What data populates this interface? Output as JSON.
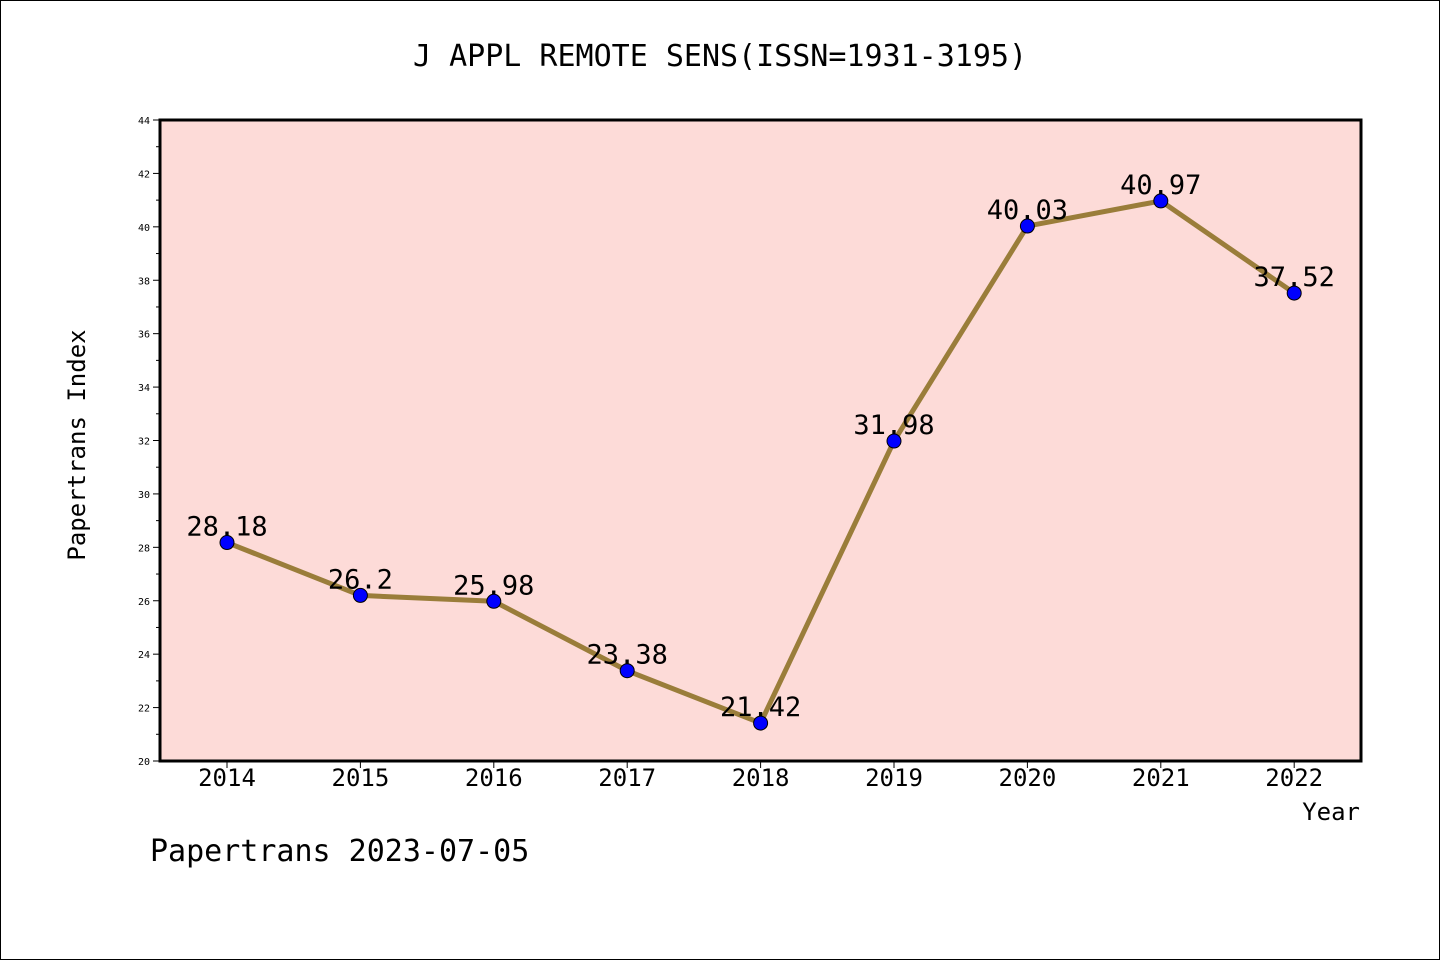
{
  "chart_data": {
    "type": "line",
    "title": "J APPL REMOTE SENS(ISSN=1931-3195)",
    "xlabel": "Year",
    "ylabel": "Papertrans Index",
    "categories": [
      "2014",
      "2015",
      "2016",
      "2017",
      "2018",
      "2019",
      "2020",
      "2021",
      "2022"
    ],
    "values": [
      28.18,
      26.2,
      25.98,
      23.38,
      21.42,
      31.98,
      40.03,
      40.97,
      37.52
    ],
    "data_labels": [
      "28.18",
      "26.2",
      "25.98",
      "23.38",
      "21.42",
      "31.98",
      "40.03",
      "40.97",
      "37.52"
    ],
    "ylim": [
      20,
      44
    ],
    "yticks": [
      20,
      22,
      24,
      26,
      28,
      30,
      32,
      34,
      36,
      38,
      40,
      42,
      44
    ],
    "grid": false,
    "legend": "none",
    "colors": {
      "plot_background": "#fddbd8",
      "line": "#9a7d3a",
      "marker": "#0000ff",
      "axis": "#000000"
    }
  },
  "footer": {
    "text": "Papertrans 2023-07-05"
  }
}
